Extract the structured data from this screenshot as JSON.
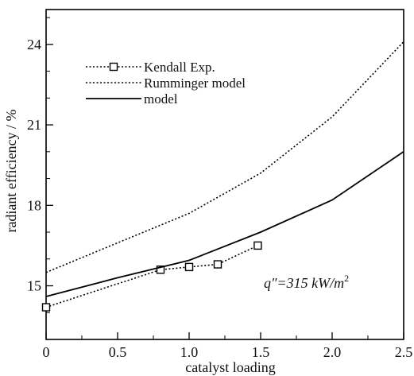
{
  "chart_data": {
    "type": "line",
    "title": "",
    "xlabel": "catalyst loading",
    "ylabel": "radiant efficiency / %",
    "xlim": [
      0,
      2.5
    ],
    "ylim": [
      13,
      25.3
    ],
    "xticks": [
      0,
      0.5,
      1.0,
      1.5,
      2.0,
      2.5
    ],
    "xtick_labels": [
      "0",
      "0.5",
      "1.0",
      "1.5",
      "2.0",
      "2.5"
    ],
    "yticks": [
      15,
      18,
      21,
      24
    ],
    "ytick_labels": [
      "15",
      "18",
      "21",
      "24"
    ],
    "grid": false,
    "legend_position": "top-left",
    "annotation": {
      "prefix": "q″=315 kW/m",
      "superscript": "2"
    },
    "series": [
      {
        "name": "Kendall Exp.",
        "style": "dotted",
        "marker": "square",
        "x": [
          0,
          0.8,
          1.0,
          1.2,
          1.48
        ],
        "y": [
          14.2,
          15.6,
          15.7,
          15.8,
          16.5
        ]
      },
      {
        "name": "Rumminger model",
        "style": "dotted",
        "marker": "none",
        "x": [
          0,
          0.5,
          1.0,
          1.5,
          2.0,
          2.5
        ],
        "y": [
          15.5,
          16.6,
          17.7,
          19.2,
          21.3,
          24.1
        ]
      },
      {
        "name": "model",
        "style": "solid",
        "marker": "none",
        "x": [
          0,
          0.5,
          1.0,
          1.5,
          2.0,
          2.5
        ],
        "y": [
          14.6,
          15.3,
          15.95,
          17.0,
          18.2,
          20.0
        ]
      }
    ]
  }
}
